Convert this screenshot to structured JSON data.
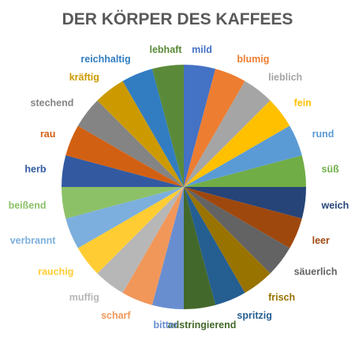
{
  "chart_data": {
    "type": "pie",
    "title": "DER KÖRPER DES KAFFEES",
    "slices": [
      {
        "label": "mild",
        "value": 1,
        "color": "#4472C4"
      },
      {
        "label": "blumig",
        "value": 1,
        "color": "#ED7D31"
      },
      {
        "label": "lieblich",
        "value": 1,
        "color": "#A5A5A5"
      },
      {
        "label": "fein",
        "value": 1,
        "color": "#FFC000"
      },
      {
        "label": "rund",
        "value": 1,
        "color": "#5B9BD5"
      },
      {
        "label": "süß",
        "value": 1,
        "color": "#70AD47"
      },
      {
        "label": "weich",
        "value": 1,
        "color": "#264478"
      },
      {
        "label": "leer",
        "value": 1,
        "color": "#9E480E"
      },
      {
        "label": "säuerlich",
        "value": 1,
        "color": "#636363"
      },
      {
        "label": "frisch",
        "value": 1,
        "color": "#997300"
      },
      {
        "label": "spritzig",
        "value": 1,
        "color": "#255E91"
      },
      {
        "label": "adstringierend",
        "value": 1,
        "color": "#43682B"
      },
      {
        "label": "bitter",
        "value": 1,
        "color": "#698ED0"
      },
      {
        "label": "scharf",
        "value": 1,
        "color": "#F1975A"
      },
      {
        "label": "muffig",
        "value": 1,
        "color": "#B7B7B7"
      },
      {
        "label": "rauchig",
        "value": 1,
        "color": "#FFCD33"
      },
      {
        "label": "verbrannt",
        "value": 1,
        "color": "#7CAFDD"
      },
      {
        "label": "beißend",
        "value": 1,
        "color": "#8CC168"
      },
      {
        "label": "herb",
        "value": 1,
        "color": "#335AA1"
      },
      {
        "label": "rau",
        "value": 1,
        "color": "#D26012"
      },
      {
        "label": "stechend",
        "value": 1,
        "color": "#848484"
      },
      {
        "label": "kräftig",
        "value": 1,
        "color": "#CC9A00"
      },
      {
        "label": "reichhaltig",
        "value": 1,
        "color": "#327DC2"
      },
      {
        "label": "lebhaft",
        "value": 1,
        "color": "#5A8A39"
      }
    ]
  }
}
